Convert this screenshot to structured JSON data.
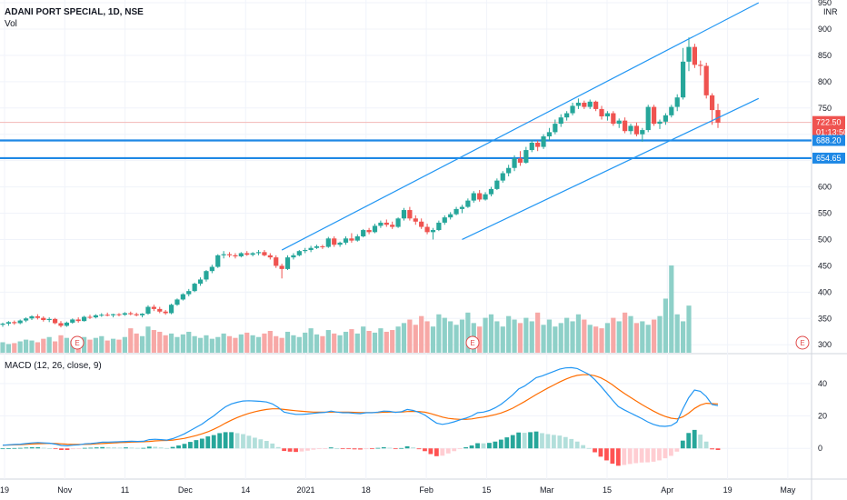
{
  "header": {
    "symbol_line": "ADANI PORT SPECIAL, 1D, NSE",
    "vol_label": "Vol",
    "macd_label": "MACD (12, 26, close, 9)",
    "currency": "INR"
  },
  "colors": {
    "up": "#26a69a",
    "down": "#ef5350",
    "vol_up": "#8ed0c8",
    "vol_down": "#f7a8a6",
    "channel": "#2196f3",
    "level": "#1e88e5",
    "macd_line": "#2196f3",
    "signal_line": "#ff6d00"
  },
  "price_tags": {
    "last": "722.50",
    "countdown": "01:13:50",
    "level1": "688.20",
    "level2": "654.65"
  },
  "earnings_badge": "E",
  "chart_data": [
    {
      "type": "candlestick",
      "title": "ADANI PORT SPECIAL, 1D, NSE",
      "ylim": [
        290,
        950
      ],
      "y_ticks": [
        300,
        350,
        400,
        450,
        500,
        550,
        600,
        650,
        700,
        750,
        800,
        850,
        900,
        950
      ],
      "x_ticks": [
        "19",
        "Nov",
        "11",
        "Dec",
        "14",
        "2021",
        "18",
        "Feb",
        "15",
        "Mar",
        "15",
        "Apr",
        "19",
        "May"
      ],
      "horizontal_levels": [
        688.2,
        654.65
      ],
      "last_price": 722.5,
      "candles_ohlc": [
        [
          338,
          342,
          334,
          340
        ],
        [
          340,
          345,
          336,
          343
        ],
        [
          343,
          346,
          338,
          341
        ],
        [
          341,
          348,
          339,
          346
        ],
        [
          346,
          352,
          343,
          350
        ],
        [
          350,
          356,
          347,
          354
        ],
        [
          354,
          358,
          348,
          351
        ],
        [
          351,
          354,
          344,
          347
        ],
        [
          347,
          352,
          343,
          349
        ],
        [
          349,
          351,
          339,
          341
        ],
        [
          341,
          345,
          333,
          336
        ],
        [
          336,
          344,
          334,
          342
        ],
        [
          342,
          350,
          340,
          348
        ],
        [
          348,
          352,
          342,
          345
        ],
        [
          345,
          355,
          344,
          353
        ],
        [
          353,
          357,
          349,
          352
        ],
        [
          352,
          358,
          350,
          356
        ],
        [
          356,
          360,
          353,
          357
        ],
        [
          357,
          361,
          354,
          356
        ],
        [
          356,
          359,
          352,
          358
        ],
        [
          358,
          360,
          354,
          357
        ],
        [
          357,
          362,
          355,
          360
        ],
        [
          360,
          363,
          356,
          358
        ],
        [
          358,
          361,
          354,
          356
        ],
        [
          356,
          360,
          352,
          359
        ],
        [
          359,
          375,
          357,
          372
        ],
        [
          372,
          376,
          364,
          368
        ],
        [
          368,
          372,
          360,
          363
        ],
        [
          363,
          366,
          357,
          360
        ],
        [
          360,
          378,
          358,
          376
        ],
        [
          376,
          388,
          374,
          386
        ],
        [
          386,
          398,
          384,
          396
        ],
        [
          396,
          406,
          392,
          402
        ],
        [
          402,
          418,
          400,
          416
        ],
        [
          416,
          428,
          412,
          424
        ],
        [
          424,
          442,
          420,
          440
        ],
        [
          440,
          452,
          436,
          448
        ],
        [
          448,
          472,
          446,
          470
        ],
        [
          470,
          478,
          464,
          472
        ],
        [
          472,
          476,
          466,
          470
        ],
        [
          470,
          474,
          464,
          468
        ],
        [
          468,
          476,
          466,
          474
        ],
        [
          474,
          478,
          469,
          471
        ],
        [
          471,
          476,
          468,
          474
        ],
        [
          474,
          480,
          470,
          476
        ],
        [
          476,
          480,
          468,
          470
        ],
        [
          470,
          474,
          462,
          466
        ],
        [
          466,
          470,
          446,
          450
        ],
        [
          450,
          454,
          426,
          444
        ],
        [
          444,
          470,
          442,
          466
        ],
        [
          466,
          474,
          462,
          470
        ],
        [
          470,
          480,
          468,
          478
        ],
        [
          478,
          484,
          474,
          480
        ],
        [
          480,
          488,
          476,
          484
        ],
        [
          484,
          490,
          482,
          487
        ],
        [
          487,
          490,
          482,
          486
        ],
        [
          486,
          505,
          484,
          502
        ],
        [
          502,
          506,
          486,
          490
        ],
        [
          490,
          496,
          486,
          494
        ],
        [
          494,
          506,
          490,
          502
        ],
        [
          502,
          512,
          494,
          498
        ],
        [
          498,
          510,
          496,
          506
        ],
        [
          506,
          520,
          504,
          518
        ],
        [
          518,
          522,
          510,
          514
        ],
        [
          514,
          530,
          512,
          526
        ],
        [
          526,
          536,
          522,
          532
        ],
        [
          532,
          538,
          524,
          528
        ],
        [
          528,
          534,
          520,
          524
        ],
        [
          524,
          542,
          522,
          540
        ],
        [
          540,
          560,
          536,
          556
        ],
        [
          556,
          562,
          536,
          540
        ],
        [
          540,
          546,
          528,
          534
        ],
        [
          534,
          540,
          520,
          524
        ],
        [
          524,
          530,
          510,
          514
        ],
        [
          514,
          522,
          500,
          518
        ],
        [
          518,
          536,
          516,
          532
        ],
        [
          532,
          546,
          528,
          542
        ],
        [
          542,
          552,
          538,
          548
        ],
        [
          548,
          562,
          546,
          558
        ],
        [
          558,
          566,
          550,
          562
        ],
        [
          562,
          578,
          560,
          574
        ],
        [
          574,
          592,
          570,
          588
        ],
        [
          588,
          594,
          572,
          576
        ],
        [
          576,
          590,
          574,
          586
        ],
        [
          586,
          600,
          582,
          596
        ],
        [
          596,
          616,
          594,
          612
        ],
        [
          612,
          630,
          608,
          626
        ],
        [
          626,
          642,
          620,
          636
        ],
        [
          636,
          660,
          630,
          654
        ],
        [
          654,
          668,
          640,
          646
        ],
        [
          646,
          676,
          644,
          670
        ],
        [
          670,
          690,
          666,
          684
        ],
        [
          684,
          688,
          668,
          676
        ],
        [
          676,
          700,
          672,
          696
        ],
        [
          696,
          712,
          688,
          704
        ],
        [
          704,
          728,
          700,
          720
        ],
        [
          720,
          738,
          714,
          732
        ],
        [
          732,
          744,
          726,
          740
        ],
        [
          740,
          760,
          736,
          754
        ],
        [
          754,
          768,
          748,
          760
        ],
        [
          760,
          764,
          748,
          752
        ],
        [
          752,
          766,
          748,
          762
        ],
        [
          762,
          764,
          744,
          748
        ],
        [
          748,
          754,
          728,
          734
        ],
        [
          734,
          744,
          726,
          740
        ],
        [
          740,
          744,
          716,
          720
        ],
        [
          720,
          730,
          712,
          726
        ],
        [
          726,
          732,
          702,
          706
        ],
        [
          706,
          720,
          700,
          716
        ],
        [
          716,
          722,
          696,
          700
        ],
        [
          700,
          712,
          686,
          708
        ],
        [
          708,
          756,
          704,
          752
        ],
        [
          752,
          756,
          716,
          720
        ],
        [
          720,
          728,
          710,
          724
        ],
        [
          724,
          740,
          718,
          736
        ],
        [
          736,
          756,
          732,
          752
        ],
        [
          752,
          776,
          744,
          770
        ],
        [
          770,
          864,
          766,
          838
        ],
        [
          838,
          884,
          820,
          866
        ],
        [
          866,
          872,
          826,
          832
        ],
        [
          832,
          840,
          812,
          830
        ],
        [
          830,
          836,
          768,
          774
        ],
        [
          774,
          778,
          718,
          746
        ],
        [
          746,
          758,
          712,
          722
        ]
      ],
      "volume_relative": [
        0.12,
        0.1,
        0.11,
        0.13,
        0.15,
        0.14,
        0.12,
        0.16,
        0.18,
        0.13,
        0.2,
        0.17,
        0.14,
        0.16,
        0.18,
        0.15,
        0.17,
        0.19,
        0.14,
        0.16,
        0.15,
        0.18,
        0.28,
        0.22,
        0.19,
        0.3,
        0.26,
        0.24,
        0.2,
        0.22,
        0.18,
        0.21,
        0.24,
        0.19,
        0.17,
        0.2,
        0.16,
        0.18,
        0.22,
        0.19,
        0.17,
        0.21,
        0.23,
        0.2,
        0.18,
        0.22,
        0.25,
        0.19,
        0.17,
        0.24,
        0.2,
        0.18,
        0.23,
        0.28,
        0.21,
        0.19,
        0.26,
        0.22,
        0.2,
        0.24,
        0.27,
        0.22,
        0.3,
        0.25,
        0.23,
        0.28,
        0.24,
        0.26,
        0.3,
        0.34,
        0.38,
        0.32,
        0.42,
        0.36,
        0.3,
        0.44,
        0.4,
        0.36,
        0.32,
        0.38,
        0.46,
        0.34,
        0.3,
        0.4,
        0.44,
        0.36,
        0.3,
        0.42,
        0.38,
        0.34,
        0.4,
        0.36,
        0.46,
        0.32,
        0.38,
        0.3,
        0.34,
        0.4,
        0.36,
        0.44,
        0.38,
        0.32,
        0.3,
        0.28,
        0.34,
        0.4,
        0.36,
        0.46,
        0.42,
        0.34,
        0.36,
        0.32,
        0.38,
        0.42,
        0.62,
        1.0,
        0.44,
        0.36,
        0.54
      ]
    },
    {
      "type": "macd",
      "title": "MACD (12, 26, close, 9)",
      "ylim": [
        -15,
        50
      ],
      "y_ticks": [
        0,
        20,
        40
      ],
      "macd_line": [
        2,
        2.2,
        2.4,
        2.6,
        3,
        3.4,
        3.6,
        3.4,
        3.2,
        2.6,
        1.8,
        1.6,
        2,
        2.2,
        2.8,
        3,
        3.4,
        3.8,
        3.9,
        4,
        4.1,
        4.3,
        4.4,
        4.3,
        4.4,
        5.4,
        5.6,
        5.4,
        5.1,
        6,
        7.4,
        9,
        11,
        13,
        15,
        17.6,
        20,
        23,
        25.6,
        27.4,
        28.4,
        29.2,
        29.4,
        29.2,
        29,
        28.6,
        27.4,
        25.2,
        22.4,
        21.6,
        21,
        21,
        21.2,
        21.6,
        22,
        22.2,
        23,
        22.4,
        22,
        22,
        21.6,
        21.4,
        22,
        22,
        22.4,
        23,
        22.8,
        22.2,
        22.6,
        24,
        23.4,
        22.2,
        20.6,
        18,
        15.6,
        14.8,
        15.4,
        16.4,
        17.6,
        18.6,
        20,
        22,
        22.4,
        23.4,
        25,
        27.2,
        30,
        33,
        36.6,
        38.4,
        41,
        43.6,
        44.6,
        46,
        47.4,
        48.8,
        49.6,
        49.8,
        49.2,
        47.4,
        45.6,
        42.4,
        38.4,
        34.2,
        29.8,
        25.8,
        23.8,
        22,
        20.2,
        18.4,
        16.4,
        14.8,
        13.8,
        13.6,
        14,
        16.2,
        24.2,
        31.2,
        36,
        35.2,
        32,
        27,
        26.4
      ],
      "signal_line": [
        2,
        2.1,
        2.2,
        2.3,
        2.5,
        2.7,
        2.9,
        3,
        3.1,
        3,
        2.8,
        2.6,
        2.5,
        2.5,
        2.5,
        2.6,
        2.8,
        3,
        3.2,
        3.4,
        3.6,
        3.7,
        3.9,
        4,
        4.1,
        4.3,
        4.6,
        4.8,
        4.9,
        5.1,
        5.6,
        6.2,
        7,
        7.9,
        9,
        10.2,
        11.8,
        13.6,
        15.6,
        17.4,
        19,
        20.4,
        21.6,
        22.6,
        23.4,
        24,
        24.4,
        24.4,
        24,
        23.6,
        23.2,
        22.9,
        22.6,
        22.4,
        22.3,
        22.3,
        22.4,
        22.4,
        22.3,
        22.3,
        22.2,
        22.1,
        22.1,
        22.1,
        22.1,
        22.3,
        22.4,
        22.4,
        22.4,
        22.7,
        22.8,
        22.7,
        22.3,
        21.5,
        20.4,
        19.3,
        18.5,
        18.1,
        17.9,
        17.9,
        18.2,
        18.8,
        19.3,
        20,
        20.8,
        21.8,
        23.2,
        24.8,
        26.8,
        28.8,
        31,
        33.2,
        35.2,
        37.2,
        39.1,
        40.9,
        42.6,
        44,
        45,
        45.4,
        45.4,
        44.8,
        43.5,
        41.6,
        39.2,
        36.5,
        34,
        31.6,
        29.3,
        27.1,
        25,
        23,
        21.2,
        19.7,
        18.6,
        18.2,
        19.4,
        21.7,
        24.6,
        26.7,
        27.8,
        27.6,
        27.4
      ],
      "histogram": [
        0,
        0.1,
        0.2,
        0.3,
        0.5,
        0.7,
        0.7,
        0.4,
        0.1,
        -0.4,
        -1,
        -1,
        -0.5,
        -0.3,
        0.3,
        0.4,
        0.6,
        0.8,
        0.7,
        0.6,
        0.5,
        0.6,
        0.5,
        0.3,
        0.3,
        1.1,
        1,
        0.6,
        0.2,
        0.9,
        1.8,
        2.8,
        4,
        5.1,
        6,
        7.4,
        8.2,
        9.4,
        10,
        10,
        9.4,
        8.8,
        7.8,
        6.6,
        5.6,
        4.6,
        3,
        0.8,
        -1.6,
        -2,
        -2.2,
        -1.9,
        -1.4,
        -0.8,
        -0.3,
        -0.1,
        0.6,
        0,
        -0.3,
        -0.3,
        -0.6,
        -0.7,
        -0.1,
        -0.1,
        0.3,
        0.7,
        0.4,
        -0.2,
        0.2,
        1.3,
        0.6,
        -0.5,
        -1.7,
        -3.5,
        -4.8,
        -4.5,
        -3.1,
        -1.7,
        -0.3,
        0.7,
        1.8,
        3.2,
        3.1,
        3.4,
        4.2,
        5.4,
        6.8,
        8.2,
        9.8,
        9.6,
        10,
        10.4,
        9.4,
        8.8,
        8.3,
        7.9,
        7,
        5.8,
        4.2,
        2,
        0.2,
        -2.4,
        -5.1,
        -7.4,
        -9.4,
        -10.7,
        -10.2,
        -9.6,
        -9.1,
        -8.7,
        -8.6,
        -8.2,
        -7.4,
        -6.1,
        -4.6,
        -2,
        4.8,
        9.5,
        11.4,
        8.5,
        4.2,
        -0.6,
        -1
      ]
    }
  ]
}
